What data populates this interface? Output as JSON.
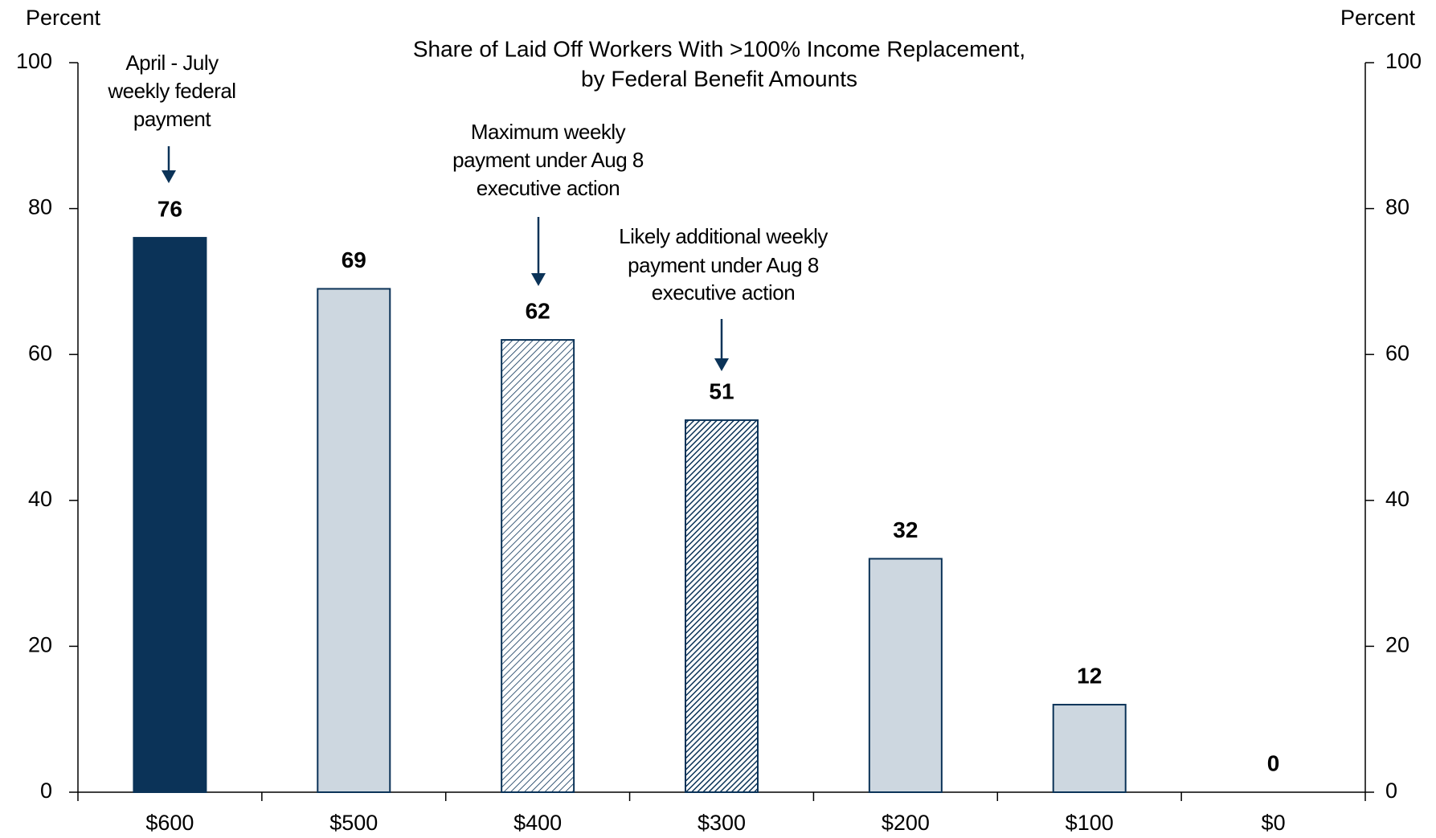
{
  "chart_data": {
    "type": "bar",
    "title": [
      "Share of Laid Off Workers With >100% Income Replacement,",
      "by Federal Benefit Amounts"
    ],
    "ylabel": "Percent",
    "y2label": "Percent",
    "categories": [
      "$600",
      "$500",
      "$400",
      "$300",
      "$200",
      "$100",
      "$0"
    ],
    "values": [
      76,
      69,
      62,
      51,
      32,
      12,
      0
    ],
    "color": "#0b3358",
    "light_color": "#cdd7e0",
    "bar_styles": [
      "solid",
      "light",
      "hatch-light",
      "hatch-dark",
      "light",
      "light",
      "light"
    ],
    "ylim": [
      0,
      100
    ],
    "yticks": [
      0,
      20,
      40,
      60,
      80,
      100
    ],
    "y2lim": [
      0,
      100
    ],
    "y2ticks": [
      0,
      20,
      40,
      60,
      80,
      100
    ],
    "annotations": [
      {
        "lines": [
          "April - July",
          "weekly federal",
          "payment"
        ]
      },
      {
        "lines": [
          "Maximum weekly",
          "payment under Aug 8",
          "executive action"
        ]
      },
      {
        "lines": [
          "Likely additional weekly",
          "payment under Aug 8",
          "executive action"
        ]
      }
    ]
  }
}
